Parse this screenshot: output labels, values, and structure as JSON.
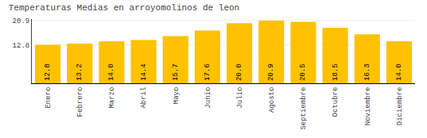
{
  "chart_data": {
    "type": "bar",
    "title": "Temperaturas Medias en arroyomolinos de leon",
    "categories": [
      "Enero",
      "Febrero",
      "Marzo",
      "Abril",
      "Mayo",
      "Junio",
      "Julio",
      "Agosto",
      "Septiembre",
      "Octubre",
      "Noviembre",
      "Diciembre"
    ],
    "values": [
      12.8,
      13.2,
      14.0,
      14.4,
      15.7,
      17.6,
      20.0,
      20.9,
      20.5,
      18.5,
      16.3,
      14.0
    ],
    "value_labels": [
      "12.8",
      "13.2",
      "14.0",
      "14.4",
      "15.7",
      "17.6",
      "20.0",
      "20.9",
      "20.5",
      "18.5",
      "16.3",
      "14.0"
    ],
    "data_labels": true,
    "color": "#FFC200",
    "ylim": [
      0,
      21.4
    ],
    "yticks": [
      12.8,
      20.9
    ],
    "grid": true
  }
}
